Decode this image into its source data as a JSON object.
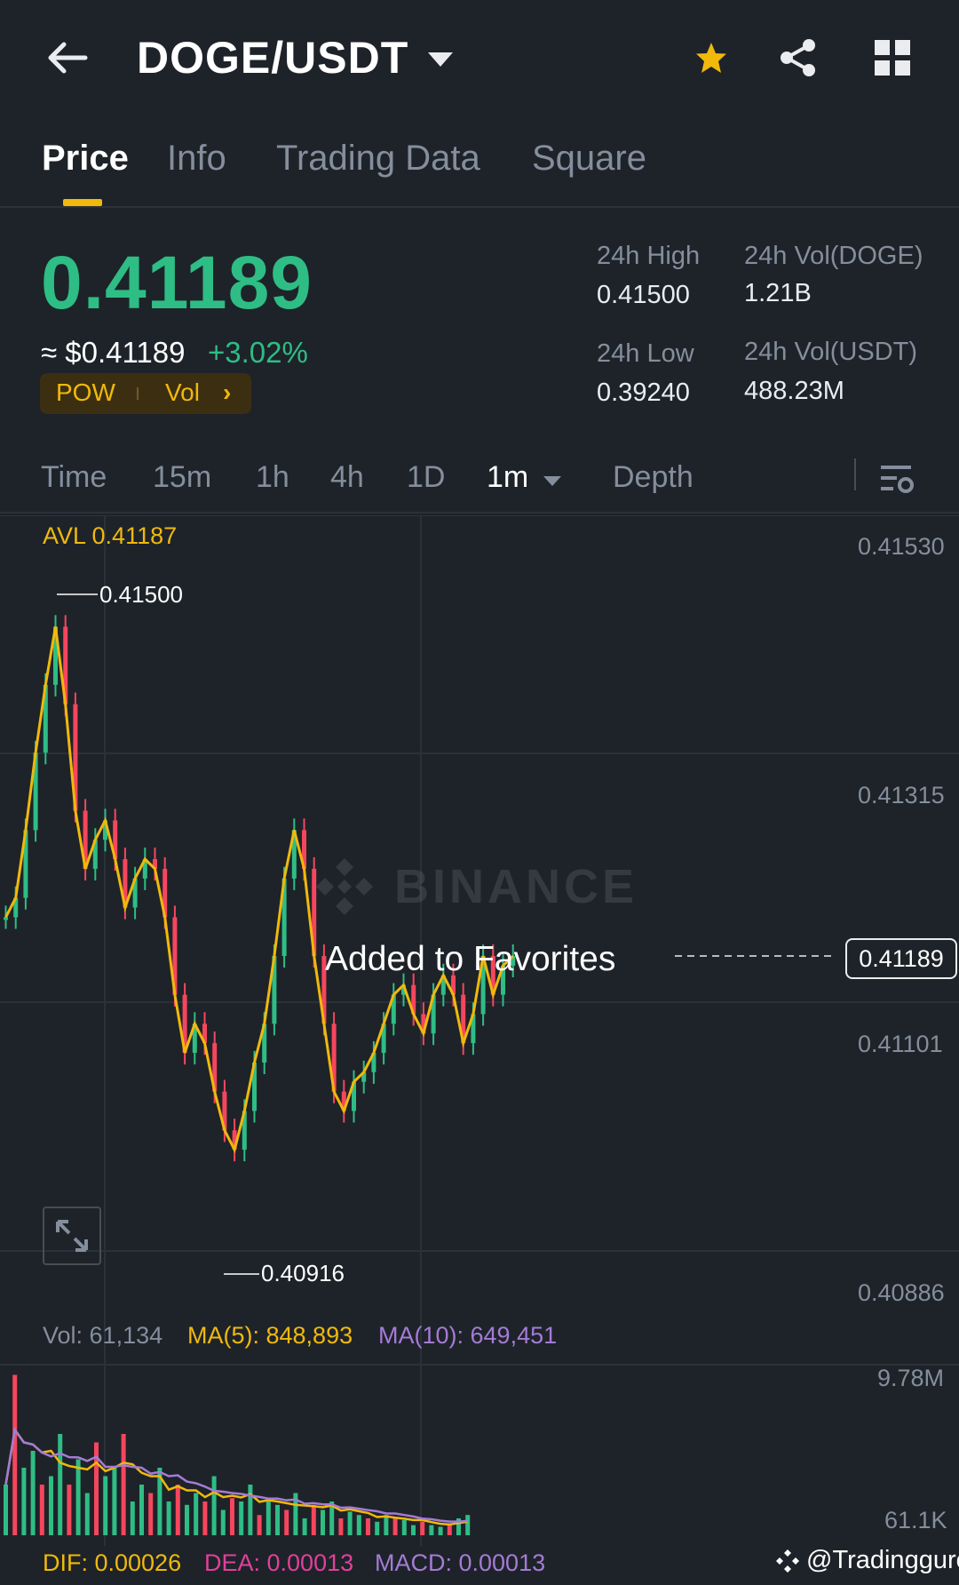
{
  "header": {
    "pair": "DOGE/USDT",
    "icons": [
      "back-arrow-icon",
      "caret-down-icon",
      "star-icon",
      "share-icon",
      "grid-icon"
    ],
    "star_color": "#f0b90b"
  },
  "tabs": [
    {
      "label": "Price",
      "active": true
    },
    {
      "label": "Info",
      "active": false
    },
    {
      "label": "Trading Data",
      "active": false
    },
    {
      "label": "Square",
      "active": false
    }
  ],
  "price": {
    "last": "0.41189",
    "usd": "≈ $0.41189",
    "change": "+3.02%",
    "tag_pow": "POW",
    "tag_vol": "Vol",
    "tag_arrow": "›"
  },
  "stats": {
    "high_label": "24h High",
    "high_value": "0.41500",
    "low_label": "24h Low",
    "low_value": "0.39240",
    "vol_doge_label": "24h Vol(DOGE)",
    "vol_doge_value": "1.21B",
    "vol_usdt_label": "24h Vol(USDT)",
    "vol_usdt_value": "488.23M"
  },
  "timeframes": [
    {
      "label": "Time",
      "active": false
    },
    {
      "label": "15m",
      "active": false
    },
    {
      "label": "1h",
      "active": false
    },
    {
      "label": "4h",
      "active": false
    },
    {
      "label": "1D",
      "active": false
    },
    {
      "label": "1m",
      "active": true
    },
    {
      "label": "Depth",
      "active": false
    }
  ],
  "chart": {
    "avl": "AVL 0.41187",
    "axis_labels": [
      "0.41530",
      "0.41315",
      "0.41101",
      "0.40886"
    ],
    "high_marker": "0.41500",
    "low_marker": "0.40916",
    "current_price": "0.41189",
    "watermark": "BINANCE",
    "toast": "Added to Favorites",
    "colors": {
      "up": "#2ebd85",
      "down": "#f6465d",
      "ma": "#f0b90b",
      "ma10": "#a47bd6"
    }
  },
  "chart_data": {
    "type": "candlestick",
    "interval": "1m",
    "ylim": [
      0.40886,
      0.4153
    ],
    "yticks": [
      "0.41530",
      "0.41315",
      "0.41101",
      "0.40886"
    ],
    "avl": 0.41187,
    "high": 0.415,
    "low": 0.40916,
    "last": 0.41189,
    "ma_close": [
      0.4117,
      0.4119,
      0.4126,
      0.4134,
      0.4141,
      0.4147,
      0.4139,
      0.4128,
      0.4122,
      0.4125,
      0.4127,
      0.4123,
      0.4118,
      0.4121,
      0.4123,
      0.4122,
      0.4117,
      0.4109,
      0.4103,
      0.4106,
      0.4104,
      0.4099,
      0.4095,
      0.4093,
      0.4097,
      0.4102,
      0.4106,
      0.4113,
      0.4121,
      0.4126,
      0.4122,
      0.4113,
      0.4106,
      0.4099,
      0.4097,
      0.41,
      0.4101,
      0.4103,
      0.4106,
      0.4109,
      0.411,
      0.4107,
      0.4105,
      0.4109,
      0.4111,
      0.4109,
      0.4104,
      0.4107,
      0.4113,
      0.4109,
      0.4112,
      0.4113
    ],
    "volume": {
      "last": "61,134",
      "ma5": "848,893",
      "ma10": "649,451",
      "axis_top": "9.78M",
      "axis_bottom": "61.1K"
    },
    "macd": {
      "dif": "0.00026",
      "dea": "0.00013",
      "macd": "0.00013"
    }
  },
  "volume_row": {
    "vol": "Vol: 61,134",
    "ma5": "MA(5): 848,893",
    "ma10": "MA(10): 649,451",
    "axis_top": "9.78M",
    "axis_bottom": "61.1K"
  },
  "macd_row": {
    "dif": "DIF: 0.00026",
    "dea": "DEA: 0.00013",
    "macd": "MACD: 0.00013"
  },
  "watermark_handle": "@Tradingguro"
}
